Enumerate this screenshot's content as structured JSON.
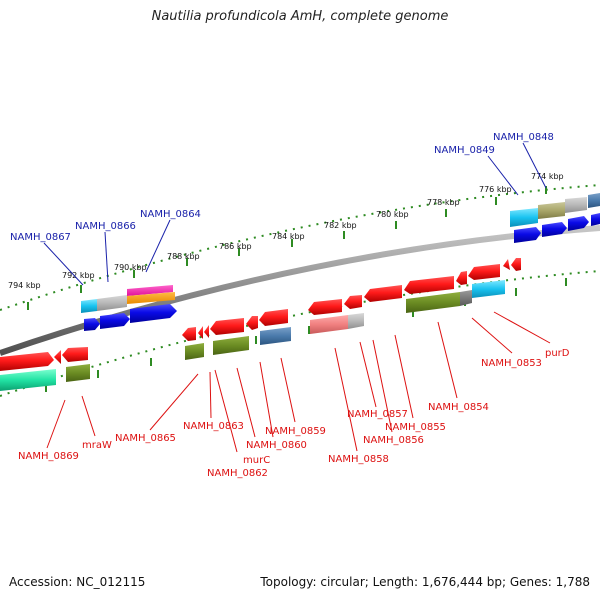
{
  "title": "Nautilia profundicola AmH, complete genome",
  "accession": "Accession: NC_012115",
  "stats": "Topology: circular; Length: 1,676,444 bp; Genes: 1,788",
  "colors": {
    "backbone": "#8a8a8a",
    "tick": "#2e8b22",
    "forward_label": "#1a22aa",
    "reverse_label": "#dd1111"
  },
  "scale_labels": [
    "794 kbp",
    "792 kbp",
    "790 kbp",
    "788 kbp",
    "786 kbp",
    "784 kbp",
    "782 kbp",
    "780 kbp",
    "778 kbp",
    "776 kbp",
    "774 kbp"
  ],
  "forward_genes": [
    "NAMH_0867",
    "NAMH_0866",
    "NAMH_0864",
    "NAMH_0849",
    "NAMH_0848"
  ],
  "reverse_genes": [
    "NAMH_0869",
    "mraW",
    "NAMH_0865",
    "NAMH_0863",
    "murC",
    "NAMH_0862",
    "NAMH_0860",
    "NAMH_0859",
    "NAMH_0858",
    "NAMH_0857",
    "NAMH_0856",
    "NAMH_0855",
    "NAMH_0854",
    "NAMH_0853",
    "purD"
  ]
}
